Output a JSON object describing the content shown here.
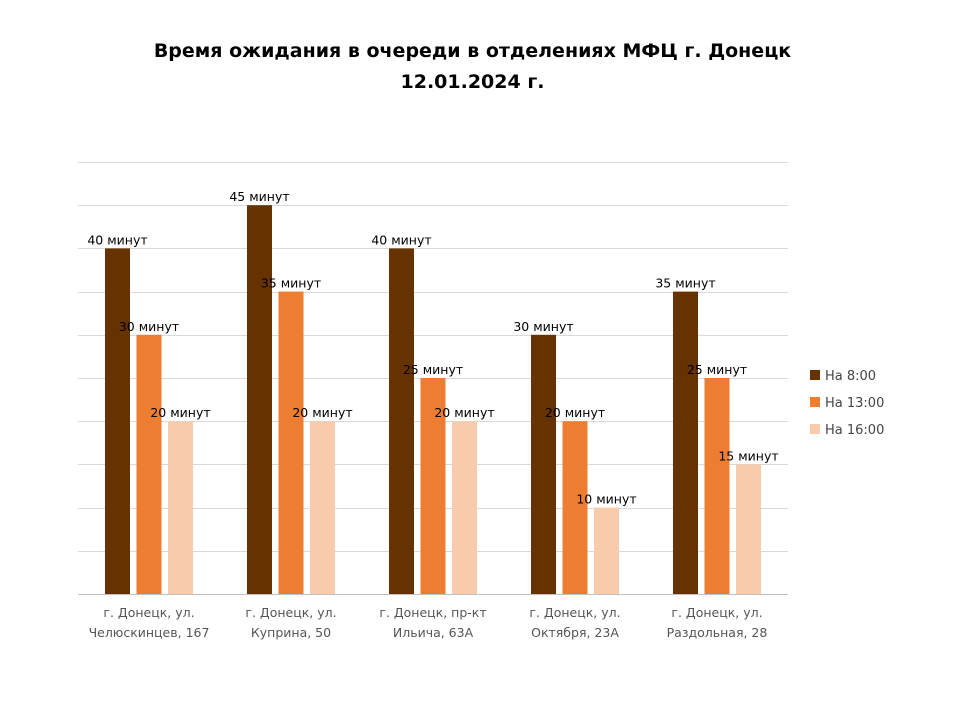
{
  "chart_data": {
    "type": "bar",
    "title": [
      "Время ожидания в очереди в отделениях МФЦ г. Донецк",
      "12.01.2024 г."
    ],
    "categories": [
      [
        "г. Донецк, ул.",
        "Челюскинцев, 167"
      ],
      [
        "г. Донецк, ул.",
        "Куприна, 50"
      ],
      [
        "г. Донецк, пр-кт",
        "Ильича, 63А"
      ],
      [
        "г. Донецк, ул.",
        "Октября, 23А"
      ],
      [
        "г. Донецк, ул.",
        "Раздольная, 28"
      ]
    ],
    "series": [
      {
        "name": "На 8:00",
        "color": "#663300",
        "values": [
          40,
          45,
          40,
          30,
          35
        ],
        "labels": [
          "40 минут",
          "45 минут",
          "40 минут",
          "30 минут",
          "35 минут"
        ]
      },
      {
        "name": "На 13:00",
        "color": "#ED7D31",
        "values": [
          30,
          35,
          25,
          20,
          25
        ],
        "labels": [
          "30 минут",
          "35 минут",
          "25 минут",
          "20 минут",
          "25 минут"
        ]
      },
      {
        "name": "На 16:00",
        "color": "#F8CBAD",
        "values": [
          20,
          20,
          20,
          10,
          15
        ],
        "labels": [
          "20 минут",
          "20 минут",
          "20 минут",
          "10 минут",
          "15 минут"
        ]
      }
    ],
    "ylim": [
      0,
      50
    ],
    "y_gridline_step": 5,
    "grid": true,
    "legend": "right"
  }
}
